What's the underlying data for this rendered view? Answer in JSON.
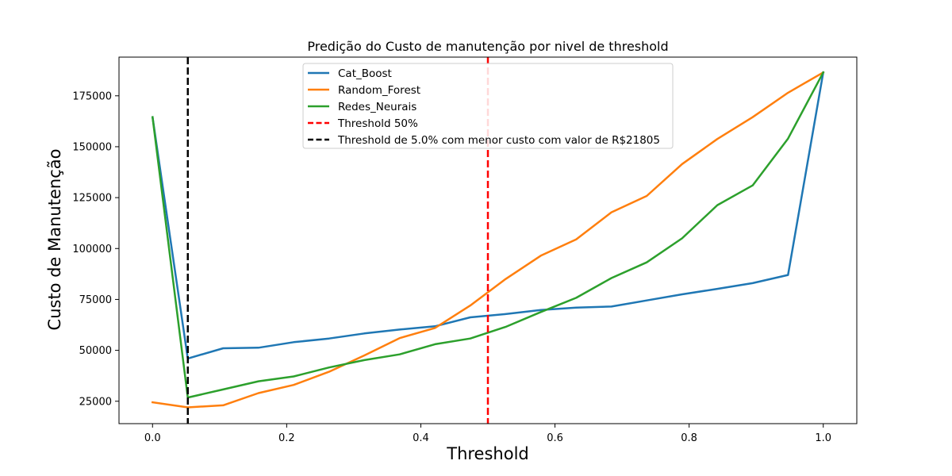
{
  "chart_data": {
    "type": "line",
    "title": "Predição do Custo de manutenção por nivel de threshold",
    "xlabel": "Threshold",
    "ylabel": "Custo de Manutenção",
    "xlim": [
      -0.05,
      1.05
    ],
    "ylim": [
      14000,
      194000
    ],
    "xticks": [
      0.0,
      0.2,
      0.4,
      0.6,
      0.8,
      1.0
    ],
    "xtick_labels": [
      "0.0",
      "0.2",
      "0.4",
      "0.6",
      "0.8",
      "1.0"
    ],
    "yticks": [
      25000,
      50000,
      75000,
      100000,
      125000,
      150000,
      175000
    ],
    "ytick_labels": [
      "25000",
      "50000",
      "75000",
      "100000",
      "125000",
      "150000",
      "175000"
    ],
    "grid": false,
    "legend_position": "top-center",
    "x": [
      0.0,
      0.0526,
      0.1053,
      0.1579,
      0.2105,
      0.2632,
      0.3158,
      0.3684,
      0.4211,
      0.4737,
      0.5263,
      0.5789,
      0.6316,
      0.6842,
      0.7368,
      0.7895,
      0.8421,
      0.8947,
      0.9474,
      1.0
    ],
    "series": [
      {
        "name": "Cat_Boost",
        "color": "#1f77b4",
        "values": [
          164500,
          46000,
          51000,
          51300,
          54000,
          55800,
          58300,
          60200,
          61800,
          66200,
          67800,
          69800,
          71000,
          71500,
          74500,
          77500,
          80200,
          83000,
          87000,
          186500
        ]
      },
      {
        "name": "Random_Forest",
        "color": "#ff7f0e",
        "values": [
          24500,
          22000,
          23000,
          29000,
          33000,
          39500,
          47500,
          56000,
          61000,
          72000,
          85000,
          96500,
          104500,
          117800,
          125800,
          141500,
          153800,
          164500,
          176500,
          186500
        ]
      },
      {
        "name": "Redes_Neurais",
        "color": "#2ca02c",
        "values": [
          164500,
          26800,
          30800,
          34800,
          37200,
          41600,
          45200,
          48000,
          53000,
          55800,
          61500,
          68800,
          75800,
          85500,
          93200,
          105000,
          121300,
          131000,
          154000,
          186500
        ]
      }
    ],
    "vlines": [
      {
        "name": "Threshold 50%",
        "x": 0.5,
        "color": "#ff0000",
        "style": "dashed"
      },
      {
        "name": "Threshold de 5.0% com menor custo com valor de R$21805",
        "x": 0.0526,
        "color": "#000000",
        "style": "dashed"
      }
    ]
  }
}
